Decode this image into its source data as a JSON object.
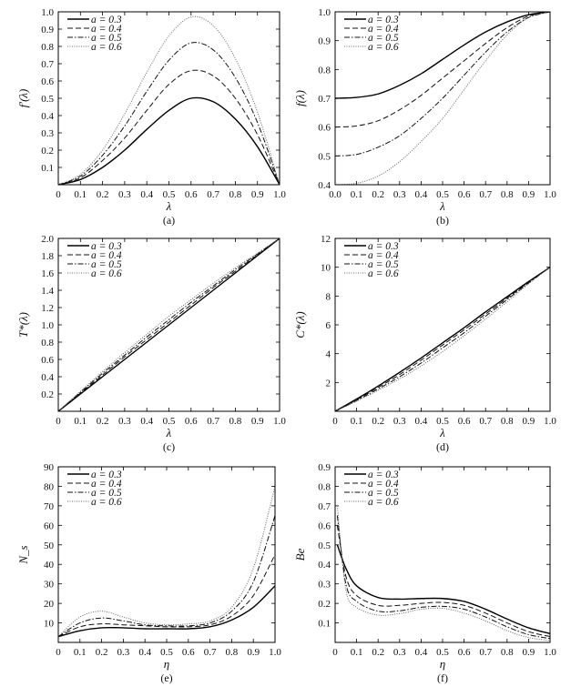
{
  "chart_data": [
    {
      "type": "line",
      "caption": "(a)",
      "xlabel": "λ",
      "ylabel": "f′(λ)",
      "xlim": [
        0,
        1
      ],
      "ylim": [
        0,
        1
      ],
      "xticks": [
        "0",
        "0.1",
        "0.2",
        "0.3",
        "0.4",
        "0.5",
        "0.6",
        "0.7",
        "0.8",
        "0.9",
        "1.0"
      ],
      "yticks": [
        "0.1",
        "0.2",
        "0.3",
        "0.4",
        "0.5",
        "0.6",
        "0.7",
        "0.8",
        "0.9",
        "1.0"
      ],
      "ytick_values": [
        0.1,
        0.2,
        0.3,
        0.4,
        0.5,
        0.6,
        0.7,
        0.8,
        0.9,
        1.0
      ],
      "legend_position": "top-left",
      "x": [
        0,
        0.1,
        0.2,
        0.3,
        0.4,
        0.5,
        0.6,
        0.7,
        0.8,
        0.9,
        1.0
      ],
      "series": [
        {
          "name": "a = 0.3",
          "values": [
            0,
            0.03,
            0.1,
            0.2,
            0.32,
            0.43,
            0.5,
            0.48,
            0.38,
            0.22,
            0
          ]
        },
        {
          "name": "a = 0.4",
          "values": [
            0,
            0.04,
            0.14,
            0.27,
            0.43,
            0.58,
            0.66,
            0.63,
            0.5,
            0.29,
            0
          ]
        },
        {
          "name": "a = 0.5",
          "values": [
            0,
            0.05,
            0.17,
            0.34,
            0.54,
            0.72,
            0.82,
            0.78,
            0.62,
            0.36,
            0
          ]
        },
        {
          "name": "a = 0.6",
          "values": [
            0,
            0.06,
            0.2,
            0.41,
            0.65,
            0.86,
            0.97,
            0.92,
            0.73,
            0.42,
            0
          ]
        }
      ]
    },
    {
      "type": "line",
      "caption": "(b)",
      "xlabel": "λ",
      "ylabel": "f(λ)",
      "xlim": [
        0,
        1
      ],
      "ylim": [
        0.4,
        1
      ],
      "xticks": [
        "0.0",
        "0.1",
        "0.2",
        "0.3",
        "0.4",
        "0.5",
        "0.6",
        "0.7",
        "0.8",
        "0.9",
        "1.0"
      ],
      "yticks": [
        "0.4",
        "0.5",
        "0.6",
        "0.7",
        "0.8",
        "0.9",
        "1.0"
      ],
      "ytick_values": [
        0.4,
        0.5,
        0.6,
        0.7,
        0.8,
        0.9,
        1.0
      ],
      "legend_position": "top-left",
      "x": [
        0,
        0.1,
        0.2,
        0.3,
        0.4,
        0.5,
        0.6,
        0.7,
        0.8,
        0.9,
        1.0
      ],
      "series": [
        {
          "name": "a = 0.3",
          "values": [
            0.7,
            0.703,
            0.715,
            0.745,
            0.785,
            0.835,
            0.885,
            0.93,
            0.965,
            0.99,
            1
          ]
        },
        {
          "name": "a = 0.4",
          "values": [
            0.6,
            0.604,
            0.622,
            0.66,
            0.71,
            0.77,
            0.83,
            0.89,
            0.945,
            0.985,
            1
          ]
        },
        {
          "name": "a = 0.5",
          "values": [
            0.5,
            0.505,
            0.53,
            0.57,
            0.63,
            0.7,
            0.78,
            0.86,
            0.93,
            0.98,
            1
          ]
        },
        {
          "name": "a = 0.6",
          "values": [
            0.4,
            0.405,
            0.43,
            0.48,
            0.55,
            0.63,
            0.73,
            0.83,
            0.92,
            0.98,
            1
          ]
        }
      ]
    },
    {
      "type": "line",
      "caption": "(c)",
      "xlabel": "λ",
      "ylabel": "T*(λ)",
      "xlim": [
        0,
        1
      ],
      "ylim": [
        0,
        2
      ],
      "xticks": [
        "0",
        "0.1",
        "0.2",
        "0.3",
        "0.4",
        "0.5",
        "0.6",
        "0.7",
        "0.8",
        "0.9",
        "1.0"
      ],
      "yticks": [
        "0.2",
        "0.4",
        "0.6",
        "0.8",
        "1.0",
        "1.2",
        "1.4",
        "1.6",
        "1.8",
        "2.0"
      ],
      "ytick_values": [
        0.2,
        0.4,
        0.6,
        0.8,
        1.0,
        1.2,
        1.4,
        1.6,
        1.8,
        2.0
      ],
      "legend_position": "top-left",
      "x": [
        0,
        0.1,
        0.2,
        0.3,
        0.4,
        0.5,
        0.6,
        0.7,
        0.8,
        0.9,
        1.0
      ],
      "series": [
        {
          "name": "a = 0.3",
          "values": [
            0,
            0.2,
            0.4,
            0.6,
            0.8,
            1.0,
            1.2,
            1.4,
            1.6,
            1.8,
            2.0
          ]
        },
        {
          "name": "a = 0.4",
          "values": [
            0,
            0.21,
            0.42,
            0.63,
            0.83,
            1.03,
            1.23,
            1.43,
            1.62,
            1.81,
            2.0
          ]
        },
        {
          "name": "a = 0.5",
          "values": [
            0,
            0.22,
            0.44,
            0.65,
            0.86,
            1.06,
            1.26,
            1.45,
            1.64,
            1.82,
            2.0
          ]
        },
        {
          "name": "a = 0.6",
          "values": [
            0,
            0.23,
            0.46,
            0.68,
            0.89,
            1.1,
            1.29,
            1.48,
            1.66,
            1.83,
            2.0
          ]
        }
      ]
    },
    {
      "type": "line",
      "caption": "(d)",
      "xlabel": "λ",
      "ylabel": "C*(λ)",
      "xlim": [
        0,
        1
      ],
      "ylim": [
        0,
        12
      ],
      "xticks": [
        "0",
        "0.1",
        "0.2",
        "0.3",
        "0.4",
        "0.5",
        "0.6",
        "0.7",
        "0.8",
        "0.9",
        "1.0"
      ],
      "yticks": [
        "2",
        "4",
        "6",
        "8",
        "10",
        "12"
      ],
      "ytick_values": [
        2,
        4,
        6,
        8,
        10,
        12
      ],
      "legend_position": "top-left",
      "x": [
        0,
        0.1,
        0.2,
        0.3,
        0.4,
        0.5,
        0.6,
        0.7,
        0.8,
        0.9,
        1.0
      ],
      "series": [
        {
          "name": "a = 0.3",
          "values": [
            0,
            0.85,
            1.75,
            2.7,
            3.7,
            4.75,
            5.8,
            6.9,
            7.95,
            9.0,
            10.0
          ]
        },
        {
          "name": "a = 0.4",
          "values": [
            0,
            0.8,
            1.65,
            2.55,
            3.55,
            4.6,
            5.65,
            6.75,
            7.85,
            8.95,
            10.0
          ]
        },
        {
          "name": "a = 0.5",
          "values": [
            0,
            0.75,
            1.55,
            2.4,
            3.35,
            4.4,
            5.45,
            6.6,
            7.75,
            8.9,
            10.0
          ]
        },
        {
          "name": "a = 0.6",
          "values": [
            0,
            0.7,
            1.45,
            2.25,
            3.15,
            4.15,
            5.25,
            6.4,
            7.6,
            8.85,
            10.0
          ]
        }
      ]
    },
    {
      "type": "line",
      "caption": "(e)",
      "xlabel": "η",
      "ylabel": "N_s",
      "xlim": [
        0,
        1
      ],
      "ylim": [
        0,
        90
      ],
      "xticks": [
        "0",
        "0.1",
        "0.2",
        "0.3",
        "0.4",
        "0.5",
        "0.6",
        "0.7",
        "0.8",
        "0.9",
        "1.0"
      ],
      "yticks": [
        "10",
        "20",
        "30",
        "40",
        "50",
        "60",
        "70",
        "80",
        "90"
      ],
      "ytick_values": [
        10,
        20,
        30,
        40,
        50,
        60,
        70,
        80,
        90
      ],
      "legend_position": "top-left",
      "x": [
        0,
        0.1,
        0.2,
        0.3,
        0.4,
        0.5,
        0.6,
        0.7,
        0.8,
        0.9,
        1.0
      ],
      "series": [
        {
          "name": "a = 0.3",
          "values": [
            3,
            6,
            7.5,
            7.5,
            7,
            7,
            7,
            8,
            11.5,
            18,
            29
          ]
        },
        {
          "name": "a = 0.4",
          "values": [
            3,
            8,
            9.5,
            9,
            8.5,
            8,
            8,
            9,
            13.5,
            24,
            45
          ]
        },
        {
          "name": "a = 0.5",
          "values": [
            3,
            10,
            12.5,
            11,
            9,
            8.5,
            8.5,
            10,
            16,
            31,
            65
          ]
        },
        {
          "name": "a = 0.6",
          "values": [
            3,
            13,
            16,
            13,
            10,
            9,
            9.5,
            11,
            18,
            38,
            80
          ]
        }
      ]
    },
    {
      "type": "line",
      "caption": "(f)",
      "xlabel": "η",
      "ylabel": "Be",
      "xlim": [
        0,
        1
      ],
      "ylim": [
        0,
        0.9
      ],
      "xticks": [
        "0",
        "0.1",
        "0.2",
        "0.3",
        "0.4",
        "0.5",
        "0.6",
        "0.7",
        "0.8",
        "0.9",
        "1.0"
      ],
      "yticks": [
        "0.1",
        "0.2",
        "0.3",
        "0.4",
        "0.5",
        "0.6",
        "0.7",
        "0.8",
        "0.9"
      ],
      "ytick_values": [
        0.1,
        0.2,
        0.3,
        0.4,
        0.5,
        0.6,
        0.7,
        0.8,
        0.9
      ],
      "legend_position": "top-left",
      "x": [
        0.01,
        0.05,
        0.1,
        0.2,
        0.3,
        0.4,
        0.5,
        0.6,
        0.7,
        0.8,
        0.9,
        1.0
      ],
      "series": [
        {
          "name": "a = 0.3",
          "values": [
            0.5,
            0.38,
            0.29,
            0.23,
            0.222,
            0.225,
            0.225,
            0.21,
            0.17,
            0.12,
            0.075,
            0.045
          ]
        },
        {
          "name": "a = 0.4",
          "values": [
            0.6,
            0.34,
            0.24,
            0.19,
            0.19,
            0.2,
            0.205,
            0.19,
            0.15,
            0.1,
            0.055,
            0.03
          ]
        },
        {
          "name": "a = 0.5",
          "values": [
            0.65,
            0.3,
            0.21,
            0.16,
            0.162,
            0.18,
            0.185,
            0.17,
            0.13,
            0.08,
            0.04,
            0.02
          ]
        },
        {
          "name": "a = 0.6",
          "values": [
            0.7,
            0.27,
            0.18,
            0.14,
            0.148,
            0.17,
            0.175,
            0.15,
            0.11,
            0.06,
            0.025,
            0.01
          ]
        }
      ]
    }
  ]
}
